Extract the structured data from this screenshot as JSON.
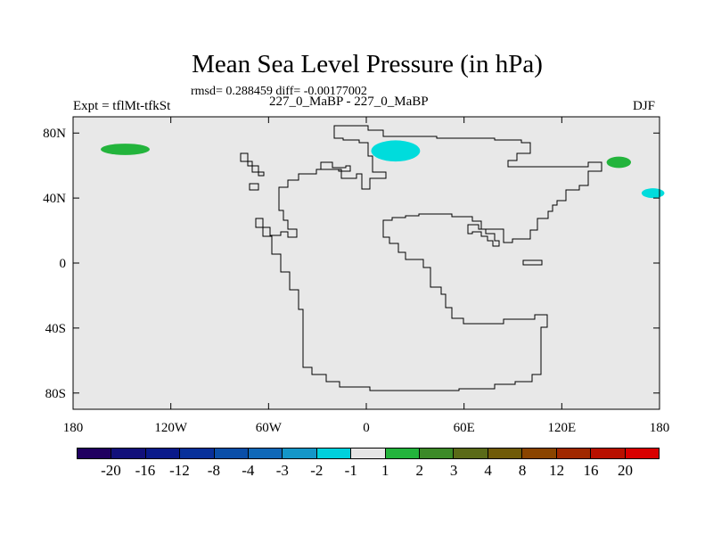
{
  "plot": {
    "title": "Mean Sea Level Pressure (in hPa)",
    "stats": "rmsd= 0.288459 diff= -0.00177002",
    "experiment": "Expt = tflMt-tfkSt",
    "period": "227_0_MaBP - 227_0_MaBP",
    "season": "DJF"
  },
  "axes": {
    "lon_labels": [
      "180",
      "120W",
      "60W",
      "0",
      "60E",
      "120E",
      "180"
    ],
    "lon_values": [
      -180,
      -120,
      -60,
      0,
      60,
      120,
      180
    ],
    "lat_labels": [
      "80N",
      "40N",
      "0",
      "40S",
      "80S"
    ],
    "lat_values": [
      80,
      40,
      0,
      -40,
      -80
    ],
    "lat_range": [
      -90,
      90
    ],
    "lon_range": [
      -180,
      180
    ]
  },
  "colors": {
    "background": "#e8e8e8",
    "coastline": "#000000",
    "negative_anomaly": "#00dcdc",
    "positive_anomaly": "#23b43c"
  },
  "anomalies": [
    {
      "sign": "positive",
      "lon": -148,
      "lat": 70,
      "lon_span": 30,
      "lat_span": 7
    },
    {
      "sign": "negative",
      "lon": 18,
      "lat": 69,
      "lon_span": 30,
      "lat_span": 13
    },
    {
      "sign": "positive",
      "lon": 155,
      "lat": 62,
      "lon_span": 15,
      "lat_span": 7
    },
    {
      "sign": "negative",
      "lon": 176,
      "lat": 43,
      "lon_span": 14,
      "lat_span": 6
    }
  ],
  "colorbar": {
    "labels": [
      "-20",
      "-16",
      "-12",
      "-8",
      "-4",
      "-3",
      "-2",
      "-1",
      "1",
      "2",
      "3",
      "4",
      "8",
      "12",
      "16",
      "20"
    ],
    "colors": [
      "#200060",
      "#12107a",
      "#0a1a8a",
      "#08309a",
      "#0a4ea8",
      "#1068b8",
      "#1496c8",
      "#00d0dc",
      "#e6e6e6",
      "#23b43c",
      "#3c8a28",
      "#5a6a18",
      "#705a08",
      "#8a4400",
      "#a02800",
      "#b81000",
      "#d80000"
    ]
  }
}
